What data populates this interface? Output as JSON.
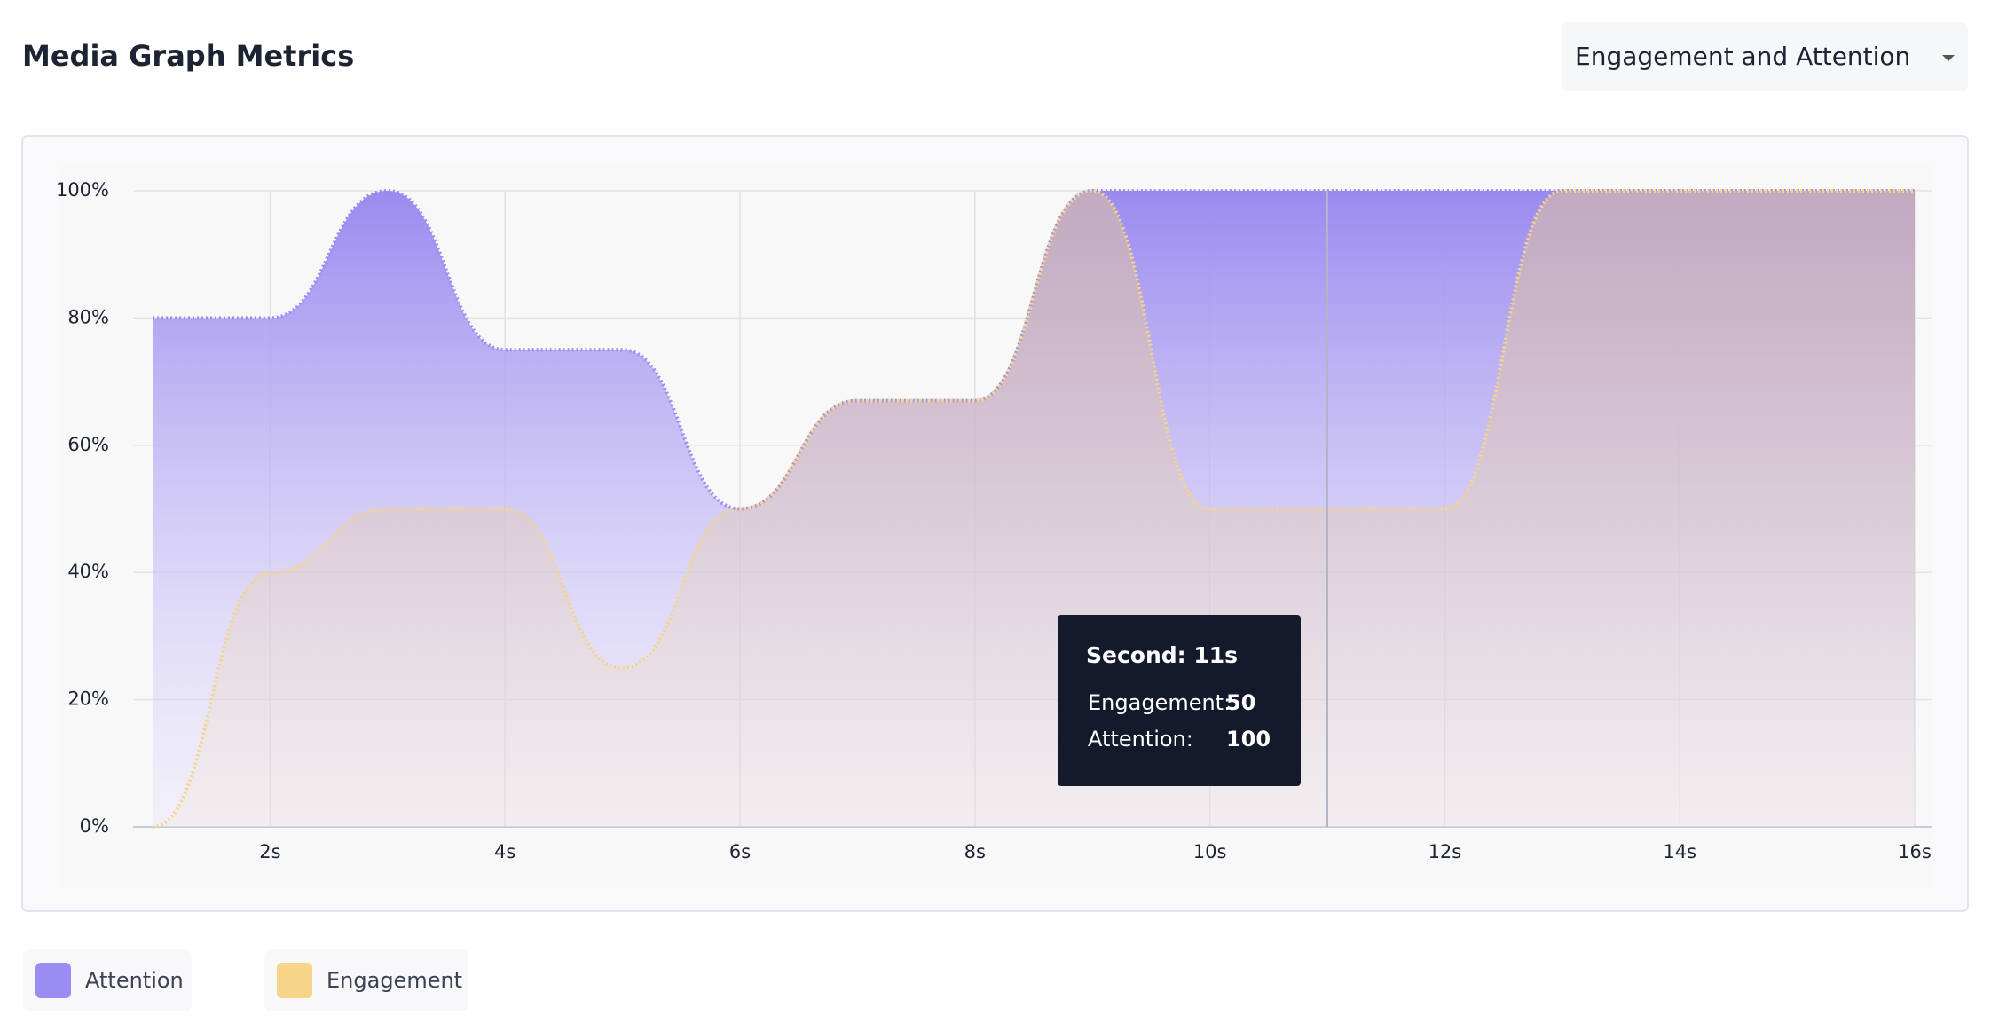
{
  "header": {
    "title": "Media Graph Metrics",
    "dropdown": "Engagement and Attention"
  },
  "chart_data": {
    "type": "area",
    "x": [
      1,
      2,
      3,
      4,
      5,
      6,
      7,
      8,
      9,
      10,
      11,
      12,
      13,
      14,
      15,
      16
    ],
    "series": [
      {
        "name": "Attention",
        "color": "#9b8cf2",
        "values": [
          80,
          80,
          100,
          75,
          75,
          50,
          67,
          67,
          100,
          100,
          100,
          100,
          100,
          100,
          100,
          100
        ]
      },
      {
        "name": "Engagement",
        "color": "#f6d488",
        "values": [
          0,
          40,
          50,
          50,
          25,
          50,
          67,
          67,
          100,
          50,
          50,
          50,
          100,
          100,
          100,
          100
        ]
      }
    ],
    "xlim": [
      1,
      16
    ],
    "ylim": [
      0,
      100
    ],
    "xticks": [
      {
        "value": 2,
        "label": "2s"
      },
      {
        "value": 4,
        "label": "4s"
      },
      {
        "value": 6,
        "label": "6s"
      },
      {
        "value": 8,
        "label": "8s"
      },
      {
        "value": 10,
        "label": "10s"
      },
      {
        "value": 12,
        "label": "12s"
      },
      {
        "value": 14,
        "label": "14s"
      },
      {
        "value": 16,
        "label": "16s"
      }
    ],
    "yticks": [
      {
        "value": 0,
        "label": "0%"
      },
      {
        "value": 20,
        "label": "20%"
      },
      {
        "value": 40,
        "label": "40%"
      },
      {
        "value": 60,
        "label": "60%"
      },
      {
        "value": 80,
        "label": "80%"
      },
      {
        "value": 100,
        "label": "100%"
      }
    ],
    "grid": true,
    "legend": "bottom-left",
    "tooltip": {
      "title": "Second: 11s",
      "x": 11,
      "rows": [
        {
          "label": "Engagement:",
          "value": 50
        },
        {
          "label": "Attention:",
          "value": 100
        }
      ]
    }
  }
}
